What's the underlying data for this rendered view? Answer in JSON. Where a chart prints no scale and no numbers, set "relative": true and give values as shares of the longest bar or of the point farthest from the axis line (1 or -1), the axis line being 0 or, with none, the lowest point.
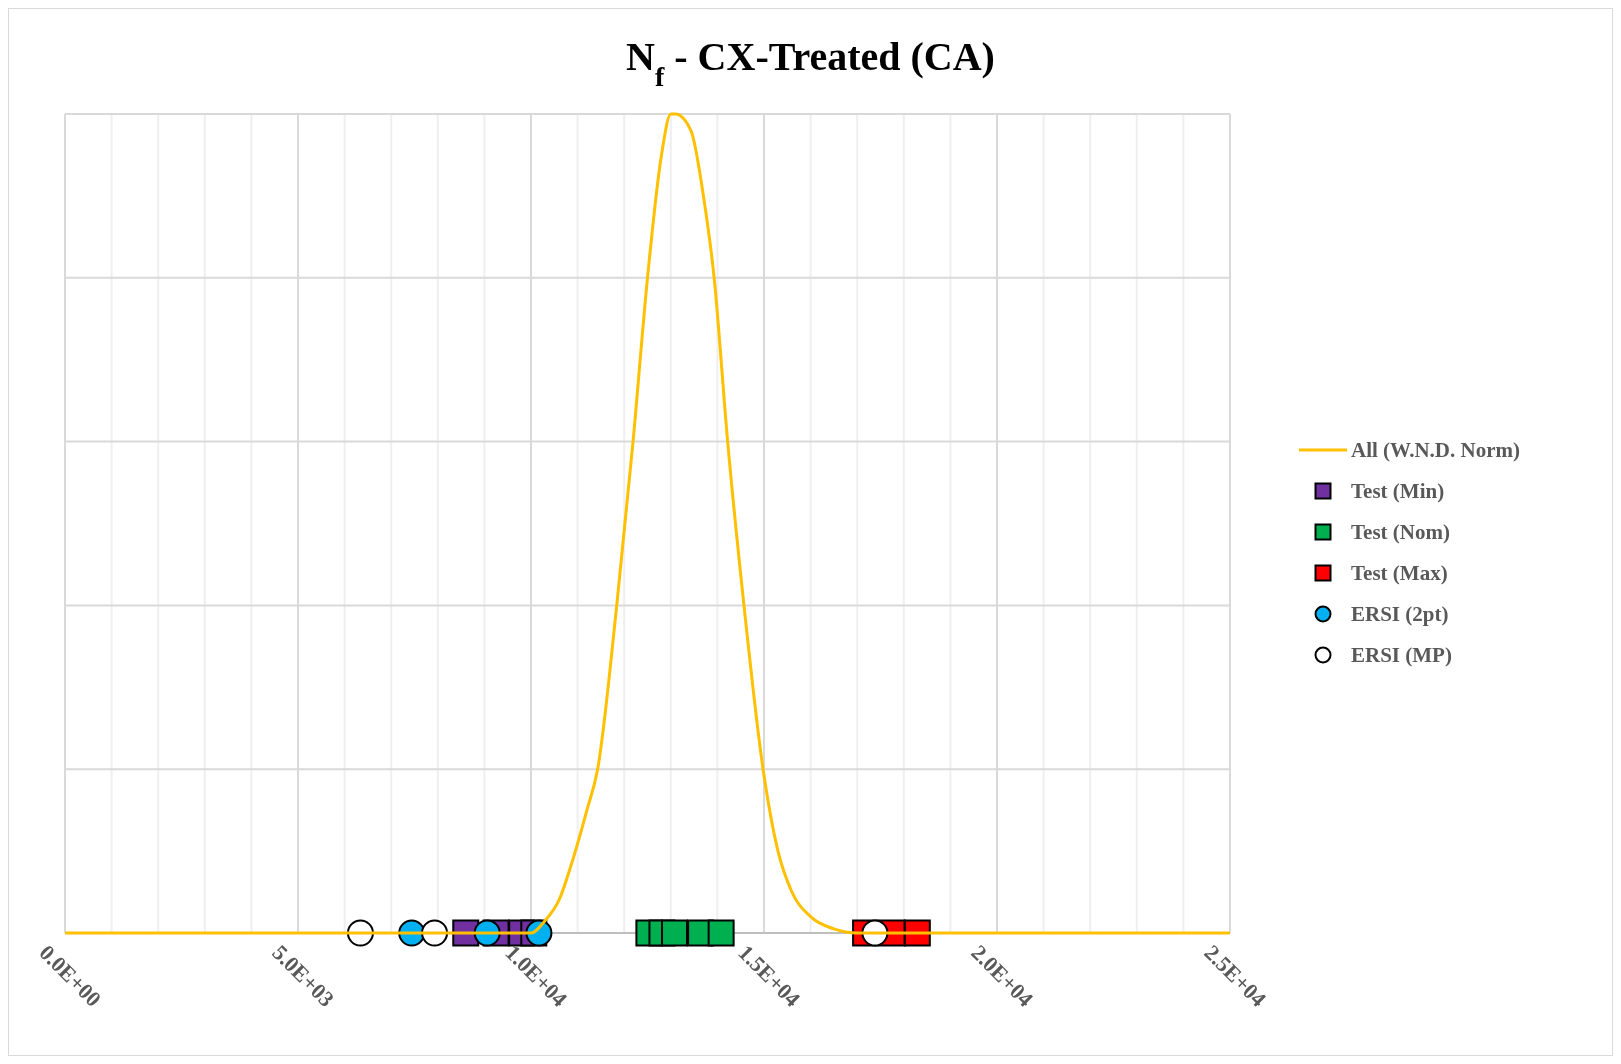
{
  "chart_data": {
    "type": "scatter",
    "title": "N$_{f}$ - CX-Treated (CA)",
    "relative": true,
    "grid": true,
    "legend": "right",
    "xlim": [
      0,
      25000
    ],
    "xticks": [
      {
        "value": 0,
        "label": "0.0E+00"
      },
      {
        "value": 1000,
        "label": null
      },
      {
        "value": 2000,
        "label": null
      },
      {
        "value": 3000,
        "label": null
      },
      {
        "value": 4000,
        "label": null
      },
      {
        "value": 5000,
        "label": "5.0E+03"
      },
      {
        "value": 6000,
        "label": null
      },
      {
        "value": 7000,
        "label": null
      },
      {
        "value": 8000,
        "label": null
      },
      {
        "value": 9000,
        "label": null
      },
      {
        "value": 10000,
        "label": "1.0E+04"
      },
      {
        "value": 11000,
        "label": null
      },
      {
        "value": 12000,
        "label": null
      },
      {
        "value": 13000,
        "label": null
      },
      {
        "value": 14000,
        "label": null
      },
      {
        "value": 15000,
        "label": "1.5E+04"
      },
      {
        "value": 16000,
        "label": null
      },
      {
        "value": 17000,
        "label": null
      },
      {
        "value": 18000,
        "label": null
      },
      {
        "value": 19000,
        "label": null
      },
      {
        "value": 20000,
        "label": "2.0E+04"
      },
      {
        "value": 21000,
        "label": null
      },
      {
        "value": 22000,
        "label": null
      },
      {
        "value": 23000,
        "label": null
      },
      {
        "value": 24000,
        "label": null
      },
      {
        "value": 25000,
        "label": "2.5E+04"
      }
    ],
    "series": [
      {
        "name": "All (W.N.D. Norm)",
        "type": "line",
        "marker": "none",
        "color": "#ffc000",
        "x": [
          0,
          10000,
          10300,
          10600,
          10900,
          11200,
          11430,
          11840,
          12190,
          12500,
          12800,
          13000,
          13100,
          13430,
          13700,
          13930,
          14220,
          14570,
          14980,
          15300,
          15600,
          16000,
          16500,
          17000,
          25000
        ],
        "values": [
          0,
          0,
          0.015,
          0.04,
          0.09,
          0.15,
          0.2,
          0.4,
          0.6,
          0.8,
          0.95,
          1,
          1,
          0.98,
          0.9,
          0.8,
          0.6,
          0.4,
          0.2,
          0.1,
          0.05,
          0.02,
          0.005,
          0,
          0
        ]
      },
      {
        "name": "Test (Min)",
        "marker": "square",
        "color": "#7030a0",
        "x": [
          8600,
          9250,
          9800,
          10060
        ],
        "values": [
          0,
          0,
          0,
          0
        ]
      },
      {
        "name": "Test (Nom)",
        "marker": "square",
        "color": "#00b050",
        "x": [
          12530,
          12810,
          13080,
          13640,
          14080
        ],
        "values": [
          0,
          0,
          0,
          0,
          0
        ]
      },
      {
        "name": "Test (Max)",
        "marker": "square",
        "color": "#ff0000",
        "x": [
          17180,
          17750,
          18290
        ],
        "values": [
          0,
          0,
          0
        ]
      },
      {
        "name": "ERSI (2pt)",
        "marker": "circle",
        "color": "#00b0f0",
        "x": [
          7440,
          9060,
          10170
        ],
        "values": [
          0,
          0,
          0
        ]
      },
      {
        "name": "ERSI (MP)",
        "marker": "circle",
        "color": "#ffffff",
        "x": [
          6340,
          7930,
          17380
        ],
        "values": [
          0,
          0,
          0
        ]
      }
    ]
  }
}
